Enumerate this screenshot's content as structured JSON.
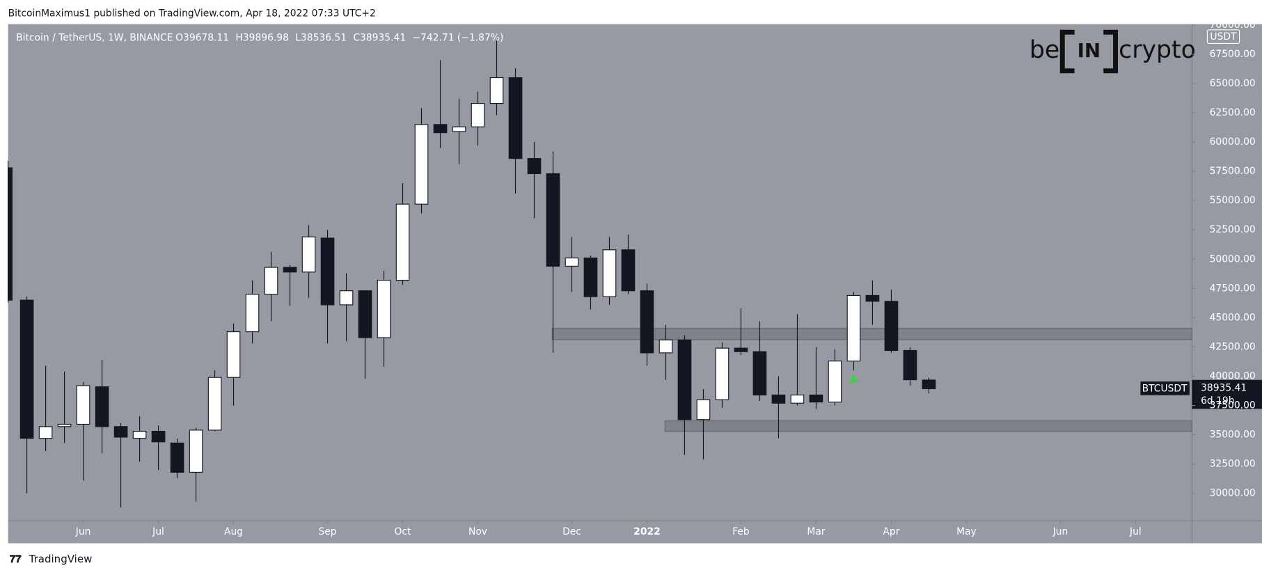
{
  "header": "BitcoinMaximus1 published on TradingView.com, Apr 18, 2022 07:33 UTC+2",
  "brand": {
    "left": "be",
    "mid": "IN",
    "right": "crypto"
  },
  "footer": "TradingView",
  "chart_data": {
    "type": "candlestick",
    "title": "Bitcoin / TetherUS, 1W, BINANCE",
    "legend": [
      {
        "key": "O",
        "value": 39678.11
      },
      {
        "key": "H",
        "value": 39896.98
      },
      {
        "key": "L",
        "value": 38536.51
      },
      {
        "key": "C",
        "value": 38935.41
      }
    ],
    "change": "−742.71 (−1.87%)",
    "currency": "USDT",
    "symbol": "BTCUSDT",
    "last_price": 38935.41,
    "countdown": "6d 19h",
    "open": [
      57800,
      46500,
      34700,
      35700,
      35900,
      39100,
      35700,
      34700,
      35300,
      34300,
      31800,
      35400,
      39900,
      43800,
      47000,
      49300,
      48900,
      51800,
      46100,
      47300,
      43300,
      48200,
      54700,
      61500,
      60900,
      61300,
      63300,
      65500,
      58600,
      57300,
      49400,
      50100,
      46800,
      50800,
      47300,
      42000,
      43100,
      36300,
      38000,
      42400,
      42100,
      38400,
      37700,
      38400,
      37800,
      41300,
      46900,
      46400,
      42200,
      39678.11
    ],
    "high": [
      58400,
      46800,
      40900,
      40400,
      39500,
      41400,
      36000,
      36600,
      35800,
      34700,
      35600,
      40500,
      44500,
      48200,
      50600,
      49500,
      52900,
      52500,
      48800,
      47300,
      49000,
      56500,
      62900,
      67000,
      63700,
      64300,
      69000,
      66300,
      60000,
      59200,
      51900,
      50300,
      51900,
      52100,
      47900,
      44400,
      43500,
      38900,
      42900,
      45800,
      44700,
      40000,
      45300,
      42500,
      42300,
      47200,
      48200,
      47400,
      42500,
      39896.98
    ],
    "low": [
      46300,
      30000,
      33600,
      34300,
      31100,
      33400,
      28800,
      32700,
      32000,
      31300,
      29300,
      35300,
      37500,
      42800,
      44700,
      46000,
      46700,
      42800,
      43000,
      39800,
      40800,
      47800,
      53900,
      59500,
      58100,
      59700,
      62300,
      55600,
      53500,
      42000,
      47200,
      45700,
      46100,
      47000,
      40900,
      39700,
      33300,
      32900,
      37300,
      41800,
      37900,
      34700,
      37500,
      37200,
      37500,
      40500,
      44400,
      42000,
      39200,
      38536.51
    ],
    "close": [
      46500,
      34700,
      35700,
      35900,
      39200,
      35700,
      34800,
      35300,
      34400,
      31800,
      35400,
      39900,
      43800,
      47000,
      49300,
      48900,
      51900,
      46100,
      47300,
      43300,
      48200,
      54700,
      61500,
      60800,
      61300,
      63300,
      65500,
      58600,
      57300,
      49400,
      50100,
      46800,
      50800,
      47300,
      42000,
      43100,
      36300,
      38000,
      42400,
      42100,
      38400,
      37700,
      38400,
      37800,
      41300,
      46900,
      46400,
      42200,
      39700,
      38935.41
    ],
    "zones": [
      {
        "low": 43130,
        "high": 44090
      },
      {
        "low": 35290,
        "high": 36190
      }
    ],
    "xlim": [
      0,
      63
    ],
    "xticks": [
      {
        "value": 4,
        "label": "Jun"
      },
      {
        "value": 8,
        "label": "Jul"
      },
      {
        "value": 12,
        "label": "Aug"
      },
      {
        "value": 17,
        "label": "Sep"
      },
      {
        "value": 21,
        "label": "Oct"
      },
      {
        "value": 25,
        "label": "Nov"
      },
      {
        "value": 30,
        "label": "Dec"
      },
      {
        "value": 34,
        "label": "2022"
      },
      {
        "value": 39,
        "label": "Feb"
      },
      {
        "value": 43,
        "label": "Mar"
      },
      {
        "value": 47,
        "label": "Apr"
      },
      {
        "value": 51,
        "label": "May"
      },
      {
        "value": 56,
        "label": "Jun"
      },
      {
        "value": 60,
        "label": "Jul"
      }
    ],
    "ylim": [
      27660,
      70070
    ],
    "yticks": [
      {
        "value": 30000,
        "label": "30000.00"
      },
      {
        "value": 32500,
        "label": "32500.00"
      },
      {
        "value": 35000,
        "label": "35000.00"
      },
      {
        "value": 37500,
        "label": "37500.00"
      },
      {
        "value": 40000,
        "label": "40000.00"
      },
      {
        "value": 42500,
        "label": "42500.00"
      },
      {
        "value": 45000,
        "label": "45000.00"
      },
      {
        "value": 47500,
        "label": "47500.00"
      },
      {
        "value": 50000,
        "label": "50000.00"
      },
      {
        "value": 52500,
        "label": "52500.00"
      },
      {
        "value": 55000,
        "label": "55000.00"
      },
      {
        "value": 57500,
        "label": "57500.00"
      },
      {
        "value": 60000,
        "label": "60000.00"
      },
      {
        "value": 62500,
        "label": "62500.00"
      },
      {
        "value": 65000,
        "label": "65000.00"
      },
      {
        "value": 67500,
        "label": "67500.00"
      },
      {
        "value": 70000,
        "label": "70000.00"
      }
    ],
    "grid": false
  }
}
